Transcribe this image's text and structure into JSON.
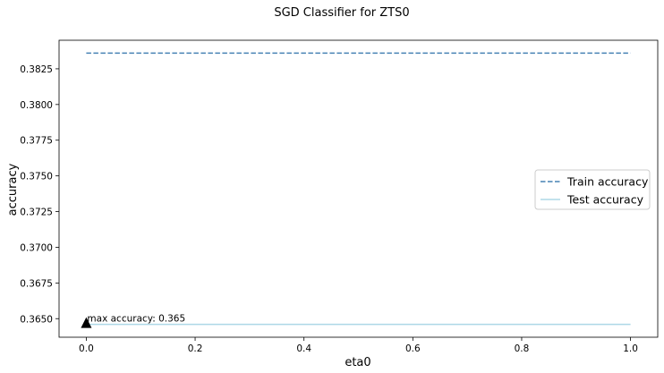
{
  "chart_data": {
    "type": "line",
    "title": "SGD Classifier for ZTS0",
    "xlabel": "eta0",
    "ylabel": "accuracy",
    "xlim": [
      -0.05,
      1.05
    ],
    "ylim": [
      0.3637,
      0.3845
    ],
    "xticks": [
      0.0,
      0.2,
      0.4,
      0.6,
      0.8,
      1.0
    ],
    "xtick_labels": [
      "0.0",
      "0.2",
      "0.4",
      "0.6",
      "0.8",
      "1.0"
    ],
    "yticks": [
      0.365,
      0.3675,
      0.37,
      0.3725,
      0.375,
      0.3775,
      0.38,
      0.3825
    ],
    "ytick_labels": [
      "0.3650",
      "0.3675",
      "0.3700",
      "0.3725",
      "0.3750",
      "0.3775",
      "0.3800",
      "0.3825"
    ],
    "grid": false,
    "legend_position": "center-right",
    "series": [
      {
        "name": "Train accuracy",
        "x": [
          0.0,
          1.0
        ],
        "y": [
          0.3836,
          0.3836
        ],
        "color": "#4682b4",
        "style": "dashed"
      },
      {
        "name": "Test accuracy",
        "x": [
          0.0,
          1.0
        ],
        "y": [
          0.3646,
          0.3646
        ],
        "color": "#add8e6",
        "style": "solid"
      }
    ],
    "annotation": {
      "text": "max accuracy: 0.365",
      "x": 0.0,
      "y": 0.3646,
      "marker": "triangle",
      "marker_color": "#000000"
    }
  }
}
